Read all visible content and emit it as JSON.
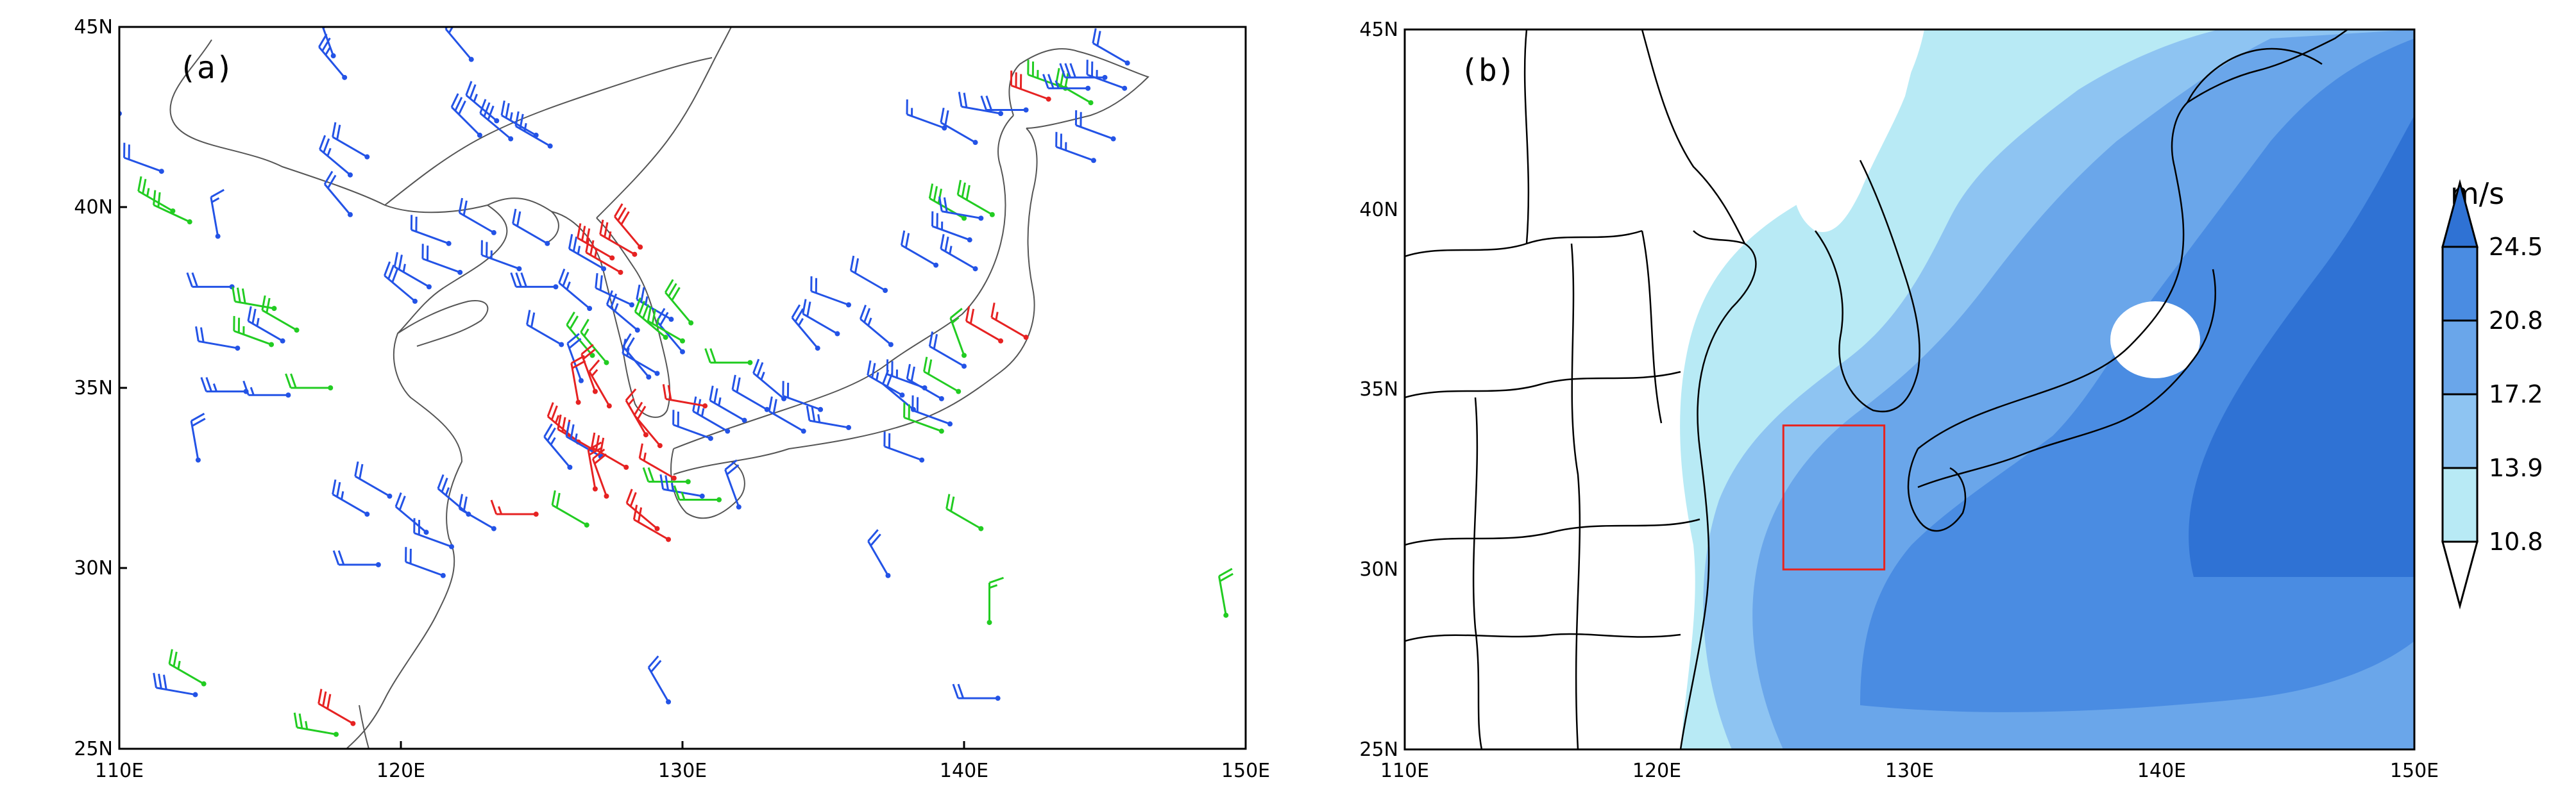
{
  "panels": [
    {
      "label": "(a)",
      "lon_range": [
        110,
        150
      ],
      "lat_range": [
        25,
        45
      ],
      "x_ticks": [
        "110E",
        "120E",
        "130E",
        "140E",
        "150E"
      ],
      "y_ticks": [
        "25N",
        "30N",
        "35N",
        "40N",
        "45N"
      ],
      "layer": "station wind barbs"
    },
    {
      "label": "(b)",
      "lon_range": [
        110,
        150
      ],
      "lat_range": [
        25,
        45
      ],
      "x_ticks": [
        "110E",
        "120E",
        "130E",
        "140E",
        "150E"
      ],
      "y_ticks": [
        "25N",
        "30N",
        "35N",
        "40N",
        "45N"
      ],
      "layer": "shaded wind speed",
      "box": {
        "lon": [
          125,
          129
        ],
        "lat": [
          30,
          34
        ],
        "color": "#e8231e"
      }
    }
  ],
  "colorbar": {
    "unit": "m/s",
    "levels": [
      "10.8",
      "13.9",
      "17.2",
      "20.8",
      "24.5"
    ],
    "colors": [
      "#ffffff",
      "#b8eaf5",
      "#8ec4f2",
      "#6aa6ea",
      "#4a8ce2",
      "#2f72d4"
    ]
  },
  "barb_colors": {
    "blue": "#2353e6",
    "green": "#22cc22",
    "red": "#e62222"
  },
  "stations": [
    {
      "lon": 110.0,
      "lat": 42.6,
      "dir": 250,
      "spd": 10,
      "c": "blue"
    },
    {
      "lon": 111.5,
      "lat": 41.0,
      "dir": 290,
      "spd": 20,
      "c": "blue"
    },
    {
      "lon": 111.9,
      "lat": 39.9,
      "dir": 300,
      "spd": 25,
      "c": "green"
    },
    {
      "lon": 113.5,
      "lat": 39.2,
      "dir": 350,
      "spd": 15,
      "c": "blue"
    },
    {
      "lon": 112.5,
      "lat": 39.6,
      "dir": 295,
      "spd": 20,
      "c": "green"
    },
    {
      "lon": 114.0,
      "lat": 37.8,
      "dir": 270,
      "spd": 20,
      "c": "blue"
    },
    {
      "lon": 115.5,
      "lat": 37.2,
      "dir": 280,
      "spd": 30,
      "c": "green"
    },
    {
      "lon": 115.4,
      "lat": 36.2,
      "dir": 290,
      "spd": 25,
      "c": "green"
    },
    {
      "lon": 116.3,
      "lat": 36.6,
      "dir": 300,
      "spd": 20,
      "c": "green"
    },
    {
      "lon": 115.8,
      "lat": 36.3,
      "dir": 300,
      "spd": 25,
      "c": "blue"
    },
    {
      "lon": 114.2,
      "lat": 36.1,
      "dir": 280,
      "spd": 20,
      "c": "blue"
    },
    {
      "lon": 114.5,
      "lat": 34.9,
      "dir": 270,
      "spd": 25,
      "c": "blue"
    },
    {
      "lon": 116.0,
      "lat": 34.8,
      "dir": 270,
      "spd": 15,
      "c": "blue"
    },
    {
      "lon": 112.8,
      "lat": 33.0,
      "dir": 350,
      "spd": 20,
      "c": "blue"
    },
    {
      "lon": 117.5,
      "lat": 35.0,
      "dir": 270,
      "spd": 20,
      "c": "green"
    },
    {
      "lon": 118.2,
      "lat": 40.9,
      "dir": 310,
      "spd": 25,
      "c": "blue"
    },
    {
      "lon": 118.8,
      "lat": 41.4,
      "dir": 300,
      "spd": 20,
      "c": "blue"
    },
    {
      "lon": 118.2,
      "lat": 39.8,
      "dir": 320,
      "spd": 20,
      "c": "blue"
    },
    {
      "lon": 117.6,
      "lat": 44.2,
      "dir": 340,
      "spd": 25,
      "c": "blue"
    },
    {
      "lon": 118.0,
      "lat": 43.6,
      "dir": 320,
      "spd": 25,
      "c": "blue"
    },
    {
      "lon": 122.5,
      "lat": 44.1,
      "dir": 320,
      "spd": 20,
      "c": "blue"
    },
    {
      "lon": 122.8,
      "lat": 42.0,
      "dir": 315,
      "spd": 30,
      "c": "blue"
    },
    {
      "lon": 123.4,
      "lat": 42.4,
      "dir": 310,
      "spd": 25,
      "c": "blue"
    },
    {
      "lon": 123.9,
      "lat": 41.9,
      "dir": 310,
      "spd": 30,
      "c": "blue"
    },
    {
      "lon": 124.8,
      "lat": 42.0,
      "dir": 300,
      "spd": 25,
      "c": "blue"
    },
    {
      "lon": 125.3,
      "lat": 41.7,
      "dir": 300,
      "spd": 25,
      "c": "blue"
    },
    {
      "lon": 121.7,
      "lat": 39.0,
      "dir": 290,
      "spd": 20,
      "c": "blue"
    },
    {
      "lon": 122.1,
      "lat": 38.2,
      "dir": 290,
      "spd": 20,
      "c": "blue"
    },
    {
      "lon": 121.0,
      "lat": 37.8,
      "dir": 300,
      "spd": 25,
      "c": "blue"
    },
    {
      "lon": 120.5,
      "lat": 37.4,
      "dir": 310,
      "spd": 30,
      "c": "blue"
    },
    {
      "lon": 123.3,
      "lat": 39.3,
      "dir": 300,
      "spd": 20,
      "c": "blue"
    },
    {
      "lon": 124.2,
      "lat": 38.3,
      "dir": 290,
      "spd": 25,
      "c": "blue"
    },
    {
      "lon": 125.5,
      "lat": 37.8,
      "dir": 270,
      "spd": 30,
      "c": "blue"
    },
    {
      "lon": 125.2,
      "lat": 39.0,
      "dir": 300,
      "spd": 20,
      "c": "blue"
    },
    {
      "lon": 125.7,
      "lat": 36.2,
      "dir": 300,
      "spd": 20,
      "c": "blue"
    },
    {
      "lon": 126.7,
      "lat": 37.2,
      "dir": 310,
      "spd": 25,
      "c": "blue"
    },
    {
      "lon": 127.2,
      "lat": 38.3,
      "dir": 300,
      "spd": 25,
      "c": "blue"
    },
    {
      "lon": 128.2,
      "lat": 37.3,
      "dir": 295,
      "spd": 20,
      "c": "blue"
    },
    {
      "lon": 129.6,
      "lat": 36.9,
      "dir": 300,
      "spd": 25,
      "c": "blue"
    },
    {
      "lon": 130.0,
      "lat": 36.0,
      "dir": 320,
      "spd": 20,
      "c": "blue"
    },
    {
      "lon": 126.8,
      "lat": 35.9,
      "dir": 320,
      "spd": 20,
      "c": "green"
    },
    {
      "lon": 127.3,
      "lat": 35.7,
      "dir": 320,
      "spd": 15,
      "c": "green"
    },
    {
      "lon": 126.4,
      "lat": 35.2,
      "dir": 340,
      "spd": 20,
      "c": "blue"
    },
    {
      "lon": 128.4,
      "lat": 36.6,
      "dir": 310,
      "spd": 25,
      "c": "blue"
    },
    {
      "lon": 128.8,
      "lat": 35.3,
      "dir": 320,
      "spd": 20,
      "c": "blue"
    },
    {
      "lon": 128.3,
      "lat": 38.7,
      "dir": 300,
      "spd": 25,
      "c": "red"
    },
    {
      "lon": 127.5,
      "lat": 38.6,
      "dir": 300,
      "spd": 30,
      "c": "red"
    },
    {
      "lon": 128.5,
      "lat": 38.9,
      "dir": 320,
      "spd": 30,
      "c": "red"
    },
    {
      "lon": 127.8,
      "lat": 38.2,
      "dir": 300,
      "spd": 25,
      "c": "red"
    },
    {
      "lon": 129.4,
      "lat": 36.4,
      "dir": 310,
      "spd": 30,
      "c": "green"
    },
    {
      "lon": 130.3,
      "lat": 36.8,
      "dir": 320,
      "spd": 30,
      "c": "green"
    },
    {
      "lon": 130.0,
      "lat": 36.3,
      "dir": 300,
      "spd": 25,
      "c": "green"
    },
    {
      "lon": 129.1,
      "lat": 35.4,
      "dir": 300,
      "spd": 15,
      "c": "blue"
    },
    {
      "lon": 126.3,
      "lat": 34.6,
      "dir": 350,
      "spd": 20,
      "c": "red"
    },
    {
      "lon": 126.9,
      "lat": 34.9,
      "dir": 340,
      "spd": 20,
      "c": "red"
    },
    {
      "lon": 127.4,
      "lat": 34.5,
      "dir": 330,
      "spd": 15,
      "c": "red"
    },
    {
      "lon": 128.7,
      "lat": 33.7,
      "dir": 330,
      "spd": 15,
      "c": "red"
    },
    {
      "lon": 129.2,
      "lat": 33.4,
      "dir": 320,
      "spd": 20,
      "c": "red"
    },
    {
      "lon": 128.0,
      "lat": 32.8,
      "dir": 300,
      "spd": 30,
      "c": "red"
    },
    {
      "lon": 126.8,
      "lat": 33.3,
      "dir": 300,
      "spd": 30,
      "c": "red"
    },
    {
      "lon": 126.3,
      "lat": 33.5,
      "dir": 310,
      "spd": 25,
      "c": "red"
    },
    {
      "lon": 126.0,
      "lat": 32.8,
      "dir": 320,
      "spd": 25,
      "c": "blue"
    },
    {
      "lon": 127.1,
      "lat": 33.1,
      "dir": 300,
      "spd": 25,
      "c": "blue"
    },
    {
      "lon": 126.9,
      "lat": 32.2,
      "dir": 350,
      "spd": 20,
      "c": "red"
    },
    {
      "lon": 127.3,
      "lat": 32.0,
      "dir": 340,
      "spd": 20,
      "c": "red"
    },
    {
      "lon": 124.8,
      "lat": 31.5,
      "dir": 270,
      "spd": 15,
      "c": "red"
    },
    {
      "lon": 123.3,
      "lat": 31.1,
      "dir": 300,
      "spd": 20,
      "c": "blue"
    },
    {
      "lon": 122.4,
      "lat": 31.5,
      "dir": 310,
      "spd": 25,
      "c": "blue"
    },
    {
      "lon": 121.8,
      "lat": 30.6,
      "dir": 290,
      "spd": 20,
      "c": "blue"
    },
    {
      "lon": 121.5,
      "lat": 29.8,
      "dir": 290,
      "spd": 20,
      "c": "blue"
    },
    {
      "lon": 119.2,
      "lat": 30.1,
      "dir": 270,
      "spd": 20,
      "c": "blue"
    },
    {
      "lon": 118.8,
      "lat": 31.5,
      "dir": 300,
      "spd": 25,
      "c": "blue"
    },
    {
      "lon": 119.6,
      "lat": 32.0,
      "dir": 300,
      "spd": 20,
      "c": "blue"
    },
    {
      "lon": 120.9,
      "lat": 31.0,
      "dir": 310,
      "spd": 20,
      "c": "blue"
    },
    {
      "lon": 113.0,
      "lat": 26.8,
      "dir": 300,
      "spd": 25,
      "c": "green"
    },
    {
      "lon": 112.7,
      "lat": 26.5,
      "dir": 280,
      "spd": 30,
      "c": "blue"
    },
    {
      "lon": 118.3,
      "lat": 25.7,
      "dir": 300,
      "spd": 30,
      "c": "red"
    },
    {
      "lon": 117.7,
      "lat": 25.4,
      "dir": 280,
      "spd": 25,
      "c": "green"
    },
    {
      "lon": 126.6,
      "lat": 31.2,
      "dir": 300,
      "spd": 20,
      "c": "green"
    },
    {
      "lon": 129.5,
      "lat": 30.8,
      "dir": 300,
      "spd": 20,
      "c": "red"
    },
    {
      "lon": 129.1,
      "lat": 31.1,
      "dir": 310,
      "spd": 20,
      "c": "red"
    },
    {
      "lon": 129.7,
      "lat": 32.5,
      "dir": 300,
      "spd": 15,
      "c": "red"
    },
    {
      "lon": 130.2,
      "lat": 32.4,
      "dir": 270,
      "spd": 20,
      "c": "green"
    },
    {
      "lon": 130.7,
      "lat": 32.0,
      "dir": 280,
      "spd": 25,
      "c": "blue"
    },
    {
      "lon": 131.3,
      "lat": 31.9,
      "dir": 270,
      "spd": 15,
      "c": "green"
    },
    {
      "lon": 131.0,
      "lat": 33.6,
      "dir": 290,
      "spd": 20,
      "c": "blue"
    },
    {
      "lon": 131.6,
      "lat": 33.8,
      "dir": 300,
      "spd": 25,
      "c": "blue"
    },
    {
      "lon": 130.8,
      "lat": 34.5,
      "dir": 280,
      "spd": 20,
      "c": "red"
    },
    {
      "lon": 132.2,
      "lat": 34.1,
      "dir": 300,
      "spd": 25,
      "c": "blue"
    },
    {
      "lon": 133.0,
      "lat": 34.4,
      "dir": 300,
      "spd": 20,
      "c": "blue"
    },
    {
      "lon": 132.4,
      "lat": 35.7,
      "dir": 270,
      "spd": 20,
      "c": "green"
    },
    {
      "lon": 133.6,
      "lat": 34.7,
      "dir": 310,
      "spd": 25,
      "c": "blue"
    },
    {
      "lon": 134.3,
      "lat": 33.8,
      "dir": 300,
      "spd": 20,
      "c": "blue"
    },
    {
      "lon": 134.9,
      "lat": 34.4,
      "dir": 290,
      "spd": 20,
      "c": "blue"
    },
    {
      "lon": 135.9,
      "lat": 33.9,
      "dir": 280,
      "spd": 25,
      "c": "blue"
    },
    {
      "lon": 134.8,
      "lat": 36.1,
      "dir": 320,
      "spd": 25,
      "c": "blue"
    },
    {
      "lon": 135.5,
      "lat": 36.5,
      "dir": 300,
      "spd": 20,
      "c": "blue"
    },
    {
      "lon": 135.9,
      "lat": 37.3,
      "dir": 290,
      "spd": 20,
      "c": "blue"
    },
    {
      "lon": 137.2,
      "lat": 37.7,
      "dir": 300,
      "spd": 20,
      "c": "blue"
    },
    {
      "lon": 137.4,
      "lat": 36.2,
      "dir": 310,
      "spd": 25,
      "c": "blue"
    },
    {
      "lon": 137.8,
      "lat": 34.8,
      "dir": 300,
      "spd": 25,
      "c": "blue"
    },
    {
      "lon": 138.2,
      "lat": 34.4,
      "dir": 310,
      "spd": 20,
      "c": "blue"
    },
    {
      "lon": 138.6,
      "lat": 35.0,
      "dir": 290,
      "spd": 25,
      "c": "blue"
    },
    {
      "lon": 139.2,
      "lat": 34.7,
      "dir": 300,
      "spd": 20,
      "c": "blue"
    },
    {
      "lon": 139.5,
      "lat": 34.0,
      "dir": 290,
      "spd": 20,
      "c": "blue"
    },
    {
      "lon": 140.0,
      "lat": 35.6,
      "dir": 300,
      "spd": 20,
      "c": "blue"
    },
    {
      "lon": 138.5,
      "lat": 33.0,
      "dir": 290,
      "spd": 20,
      "c": "blue"
    },
    {
      "lon": 139.8,
      "lat": 34.9,
      "dir": 300,
      "spd": 20,
      "c": "green"
    },
    {
      "lon": 139.2,
      "lat": 33.8,
      "dir": 290,
      "spd": 20,
      "c": "green"
    },
    {
      "lon": 140.6,
      "lat": 31.1,
      "dir": 300,
      "spd": 20,
      "c": "green"
    },
    {
      "lon": 140.0,
      "lat": 35.9,
      "dir": 340,
      "spd": 15,
      "c": "green"
    },
    {
      "lon": 141.3,
      "lat": 36.3,
      "dir": 300,
      "spd": 20,
      "c": "red"
    },
    {
      "lon": 142.2,
      "lat": 36.4,
      "dir": 300,
      "spd": 15,
      "c": "red"
    },
    {
      "lon": 139.0,
      "lat": 38.4,
      "dir": 300,
      "spd": 20,
      "c": "blue"
    },
    {
      "lon": 140.4,
      "lat": 38.3,
      "dir": 300,
      "spd": 25,
      "c": "blue"
    },
    {
      "lon": 140.0,
      "lat": 39.7,
      "dir": 300,
      "spd": 30,
      "c": "green"
    },
    {
      "lon": 140.6,
      "lat": 39.7,
      "dir": 280,
      "spd": 20,
      "c": "blue"
    },
    {
      "lon": 140.2,
      "lat": 39.1,
      "dir": 290,
      "spd": 25,
      "c": "blue"
    },
    {
      "lon": 141.0,
      "lat": 39.8,
      "dir": 300,
      "spd": 30,
      "c": "green"
    },
    {
      "lon": 139.3,
      "lat": 42.2,
      "dir": 290,
      "spd": 15,
      "c": "blue"
    },
    {
      "lon": 140.4,
      "lat": 41.8,
      "dir": 300,
      "spd": 20,
      "c": "blue"
    },
    {
      "lon": 141.3,
      "lat": 42.6,
      "dir": 280,
      "spd": 20,
      "c": "blue"
    },
    {
      "lon": 142.2,
      "lat": 42.7,
      "dir": 270,
      "spd": 20,
      "c": "blue"
    },
    {
      "lon": 143.0,
      "lat": 43.0,
      "dir": 290,
      "spd": 30,
      "c": "red"
    },
    {
      "lon": 143.6,
      "lat": 43.3,
      "dir": 290,
      "spd": 25,
      "c": "green"
    },
    {
      "lon": 144.5,
      "lat": 42.9,
      "dir": 300,
      "spd": 30,
      "c": "green"
    },
    {
      "lon": 144.4,
      "lat": 43.3,
      "dir": 270,
      "spd": 25,
      "c": "blue"
    },
    {
      "lon": 145.0,
      "lat": 43.6,
      "dir": 270,
      "spd": 30,
      "c": "blue"
    },
    {
      "lon": 145.7,
      "lat": 43.3,
      "dir": 290,
      "spd": 25,
      "c": "blue"
    },
    {
      "lon": 145.3,
      "lat": 41.9,
      "dir": 290,
      "spd": 20,
      "c": "blue"
    },
    {
      "lon": 144.6,
      "lat": 41.3,
      "dir": 290,
      "spd": 25,
      "c": "blue"
    },
    {
      "lon": 145.8,
      "lat": 44.0,
      "dir": 300,
      "spd": 20,
      "c": "blue"
    },
    {
      "lon": 149.3,
      "lat": 28.7,
      "dir": 350,
      "spd": 20,
      "c": "green"
    },
    {
      "lon": 140.9,
      "lat": 28.5,
      "dir": 0,
      "spd": 15,
      "c": "green"
    },
    {
      "lon": 137.3,
      "lat": 29.8,
      "dir": 330,
      "spd": 20,
      "c": "blue"
    },
    {
      "lon": 141.2,
      "lat": 26.4,
      "dir": 270,
      "spd": 20,
      "c": "blue"
    },
    {
      "lon": 129.5,
      "lat": 26.3,
      "dir": 330,
      "spd": 20,
      "c": "blue"
    },
    {
      "lon": 132.0,
      "lat": 31.7,
      "dir": 340,
      "spd": 20,
      "c": "blue"
    }
  ]
}
